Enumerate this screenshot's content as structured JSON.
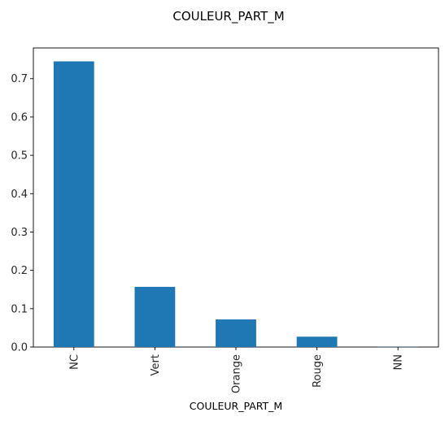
{
  "chart_data": {
    "type": "bar",
    "title": "COULEUR_PART_M",
    "xlabel": "COULEUR_PART_M",
    "ylabel": "",
    "categories": [
      "NC",
      "Vert",
      "Orange",
      "Rouge",
      "NN"
    ],
    "values": [
      0.745,
      0.157,
      0.072,
      0.027,
      0.0005
    ],
    "ylim": [
      0,
      0.78
    ],
    "yticks": [
      "0.0",
      "0.1",
      "0.2",
      "0.3",
      "0.4",
      "0.5",
      "0.6",
      "0.7"
    ],
    "ytick_values": [
      0,
      0.1,
      0.2,
      0.3,
      0.4,
      0.5,
      0.6,
      0.7
    ],
    "bar_color": "#1f77b4",
    "grid": false,
    "legend": "none"
  }
}
